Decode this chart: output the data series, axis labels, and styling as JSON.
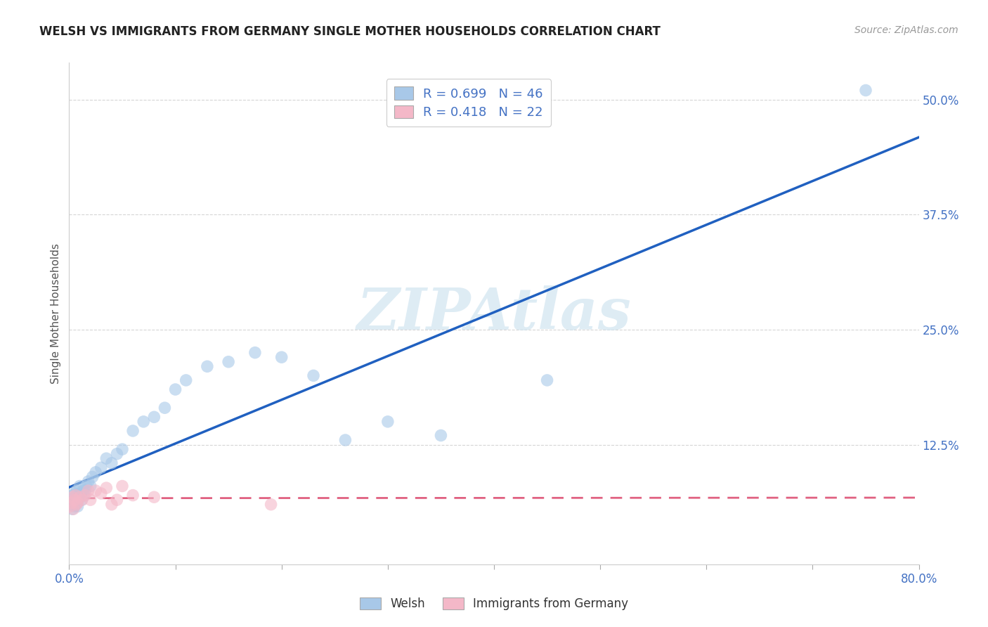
{
  "title": "WELSH VS IMMIGRANTS FROM GERMANY SINGLE MOTHER HOUSEHOLDS CORRELATION CHART",
  "source_text": "Source: ZipAtlas.com",
  "ylabel": "Single Mother Households",
  "r_welsh": 0.699,
  "n_welsh": 46,
  "r_germany": 0.418,
  "n_germany": 22,
  "xlim": [
    0.0,
    0.8
  ],
  "ylim": [
    -0.005,
    0.54
  ],
  "welsh_color": "#a8c8e8",
  "germany_color": "#f4b8c8",
  "welsh_line_color": "#2060c0",
  "germany_line_color": "#e06080",
  "watermark_color": "#d0e4f0",
  "watermark": "ZIPAtlas",
  "background_color": "#ffffff",
  "welsh_x": [
    0.001,
    0.002,
    0.003,
    0.004,
    0.005,
    0.005,
    0.006,
    0.006,
    0.007,
    0.007,
    0.008,
    0.008,
    0.009,
    0.01,
    0.01,
    0.011,
    0.012,
    0.013,
    0.014,
    0.015,
    0.016,
    0.018,
    0.02,
    0.022,
    0.025,
    0.03,
    0.035,
    0.04,
    0.045,
    0.05,
    0.06,
    0.07,
    0.08,
    0.09,
    0.1,
    0.11,
    0.13,
    0.15,
    0.175,
    0.2,
    0.23,
    0.26,
    0.3,
    0.35,
    0.45,
    0.75
  ],
  "welsh_y": [
    0.06,
    0.065,
    0.055,
    0.07,
    0.058,
    0.072,
    0.06,
    0.068,
    0.062,
    0.075,
    0.058,
    0.065,
    0.07,
    0.068,
    0.08,
    0.072,
    0.065,
    0.075,
    0.07,
    0.075,
    0.08,
    0.085,
    0.08,
    0.09,
    0.095,
    0.1,
    0.11,
    0.105,
    0.115,
    0.12,
    0.14,
    0.15,
    0.155,
    0.165,
    0.185,
    0.195,
    0.21,
    0.215,
    0.225,
    0.22,
    0.2,
    0.13,
    0.15,
    0.135,
    0.195,
    0.51
  ],
  "germany_x": [
    0.001,
    0.002,
    0.003,
    0.004,
    0.005,
    0.006,
    0.007,
    0.008,
    0.01,
    0.012,
    0.015,
    0.018,
    0.02,
    0.025,
    0.03,
    0.035,
    0.04,
    0.045,
    0.05,
    0.06,
    0.08,
    0.19
  ],
  "germany_y": [
    0.058,
    0.062,
    0.068,
    0.055,
    0.065,
    0.07,
    0.06,
    0.062,
    0.068,
    0.065,
    0.07,
    0.075,
    0.065,
    0.075,
    0.072,
    0.078,
    0.06,
    0.065,
    0.08,
    0.07,
    0.068,
    0.06
  ]
}
